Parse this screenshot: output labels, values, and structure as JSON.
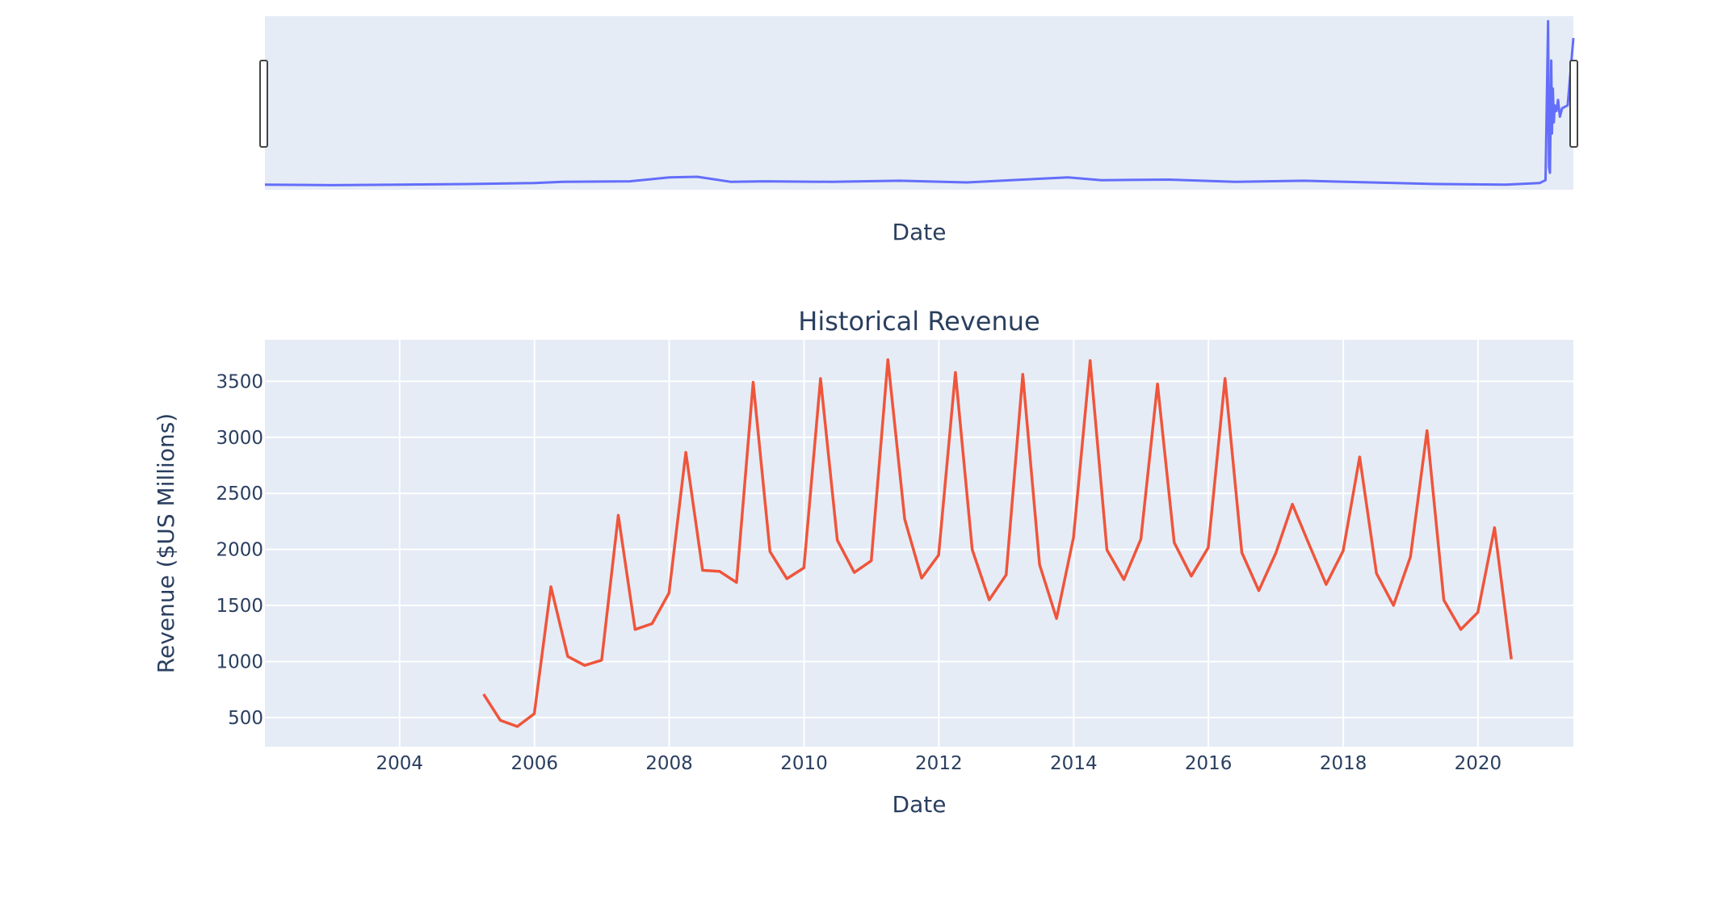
{
  "chart_data": [
    {
      "type": "line",
      "role": "range-slider-overview",
      "title": "",
      "xlabel": "Date",
      "ylabel": "",
      "x_range": [
        "2002-01-01",
        "2021-06-01"
      ],
      "grid": false,
      "colors": {
        "line": "#636efa",
        "plot_bg": "#e5ecf6",
        "handle": "#444444"
      },
      "series": [
        {
          "x": [
            "2002-01-01",
            "2003-01-01",
            "2004-01-01",
            "2005-01-01",
            "2006-01-01",
            "2006-06-01",
            "2007-06-01",
            "2008-01-01",
            "2008-06-01",
            "2008-12-01",
            "2009-06-01",
            "2010-06-01",
            "2011-06-01",
            "2012-06-01",
            "2013-06-01",
            "2013-12-01",
            "2014-06-01",
            "2015-06-01",
            "2016-06-01",
            "2017-06-01",
            "2018-06-01",
            "2019-06-01",
            "2020-06-01",
            "2020-12-01",
            "2021-01-01",
            "2021-01-15",
            "2021-01-20",
            "2021-01-25",
            "2021-02-01",
            "2021-02-05",
            "2021-02-10",
            "2021-02-15",
            "2021-02-20",
            "2021-03-01",
            "2021-03-10",
            "2021-03-20",
            "2021-04-01",
            "2021-05-01",
            "2021-06-01"
          ],
          "values": [
            9,
            8,
            9,
            10,
            12,
            14,
            15,
            22,
            23,
            14,
            15,
            14,
            16,
            13,
            19,
            22,
            17,
            18,
            14,
            16,
            13,
            10,
            9,
            12,
            17,
            300,
            40,
            30,
            230,
            100,
            180,
            120,
            150,
            140,
            160,
            130,
            145,
            150,
            270
          ]
        }
      ]
    },
    {
      "type": "line",
      "title": "Historical Revenue",
      "xlabel": "Date",
      "ylabel": "Revenue ($US Millions)",
      "x_range": [
        "2002-01-01",
        "2021-06-01"
      ],
      "ylim": [
        240,
        3870
      ],
      "x_ticks": [
        "2004",
        "2006",
        "2008",
        "2010",
        "2012",
        "2014",
        "2016",
        "2018",
        "2020"
      ],
      "y_ticks": [
        "500",
        "1000",
        "1500",
        "2000",
        "2500",
        "3000",
        "3500"
      ],
      "grid": true,
      "colors": {
        "line": "#ef553b",
        "plot_bg": "#e5ecf6",
        "grid": "#ffffff"
      },
      "series": [
        {
          "x": [
            "2005-03-31",
            "2005-06-30",
            "2005-09-30",
            "2005-12-31",
            "2006-03-31",
            "2006-06-30",
            "2006-09-30",
            "2006-12-31",
            "2007-03-31",
            "2007-06-30",
            "2007-09-30",
            "2007-12-31",
            "2008-03-31",
            "2008-06-30",
            "2008-09-30",
            "2008-12-31",
            "2009-03-31",
            "2009-06-30",
            "2009-09-30",
            "2009-12-31",
            "2010-03-31",
            "2010-06-30",
            "2010-09-30",
            "2010-12-31",
            "2011-03-31",
            "2011-06-30",
            "2011-09-30",
            "2011-12-31",
            "2012-03-31",
            "2012-06-30",
            "2012-09-30",
            "2012-12-31",
            "2013-03-31",
            "2013-06-30",
            "2013-09-30",
            "2013-12-31",
            "2014-03-31",
            "2014-06-30",
            "2014-09-30",
            "2014-12-31",
            "2015-03-31",
            "2015-06-30",
            "2015-09-30",
            "2015-12-31",
            "2016-03-31",
            "2016-06-30",
            "2016-09-30",
            "2016-12-31",
            "2017-03-31",
            "2017-06-30",
            "2017-09-30",
            "2017-12-31",
            "2018-03-31",
            "2018-06-30",
            "2018-09-30",
            "2018-12-31",
            "2019-03-31",
            "2019-06-30",
            "2019-09-30",
            "2019-12-31",
            "2020-03-31",
            "2020-06-30"
          ],
          "values": [
            709,
            475,
            420,
            534,
            1667,
            1045,
            965,
            1012,
            2304,
            1286,
            1338,
            1611,
            2866,
            1814,
            1804,
            1705,
            3492,
            1981,
            1739,
            1835,
            3524,
            2082,
            1794,
            1899,
            3693,
            2270,
            1744,
            1950,
            3579,
            1999,
            1550,
            1773,
            3562,
            1864,
            1384,
            2107,
            3684,
            1996,
            1731,
            2092,
            3476,
            2061,
            1762,
            2016,
            3525,
            1972,
            1632,
            1966,
            2403,
            2044,
            1688,
            1986,
            2825,
            1786,
            1501,
            1935,
            3060,
            1548,
            1286,
            1438,
            2194,
            1021
          ]
        }
      ]
    }
  ]
}
